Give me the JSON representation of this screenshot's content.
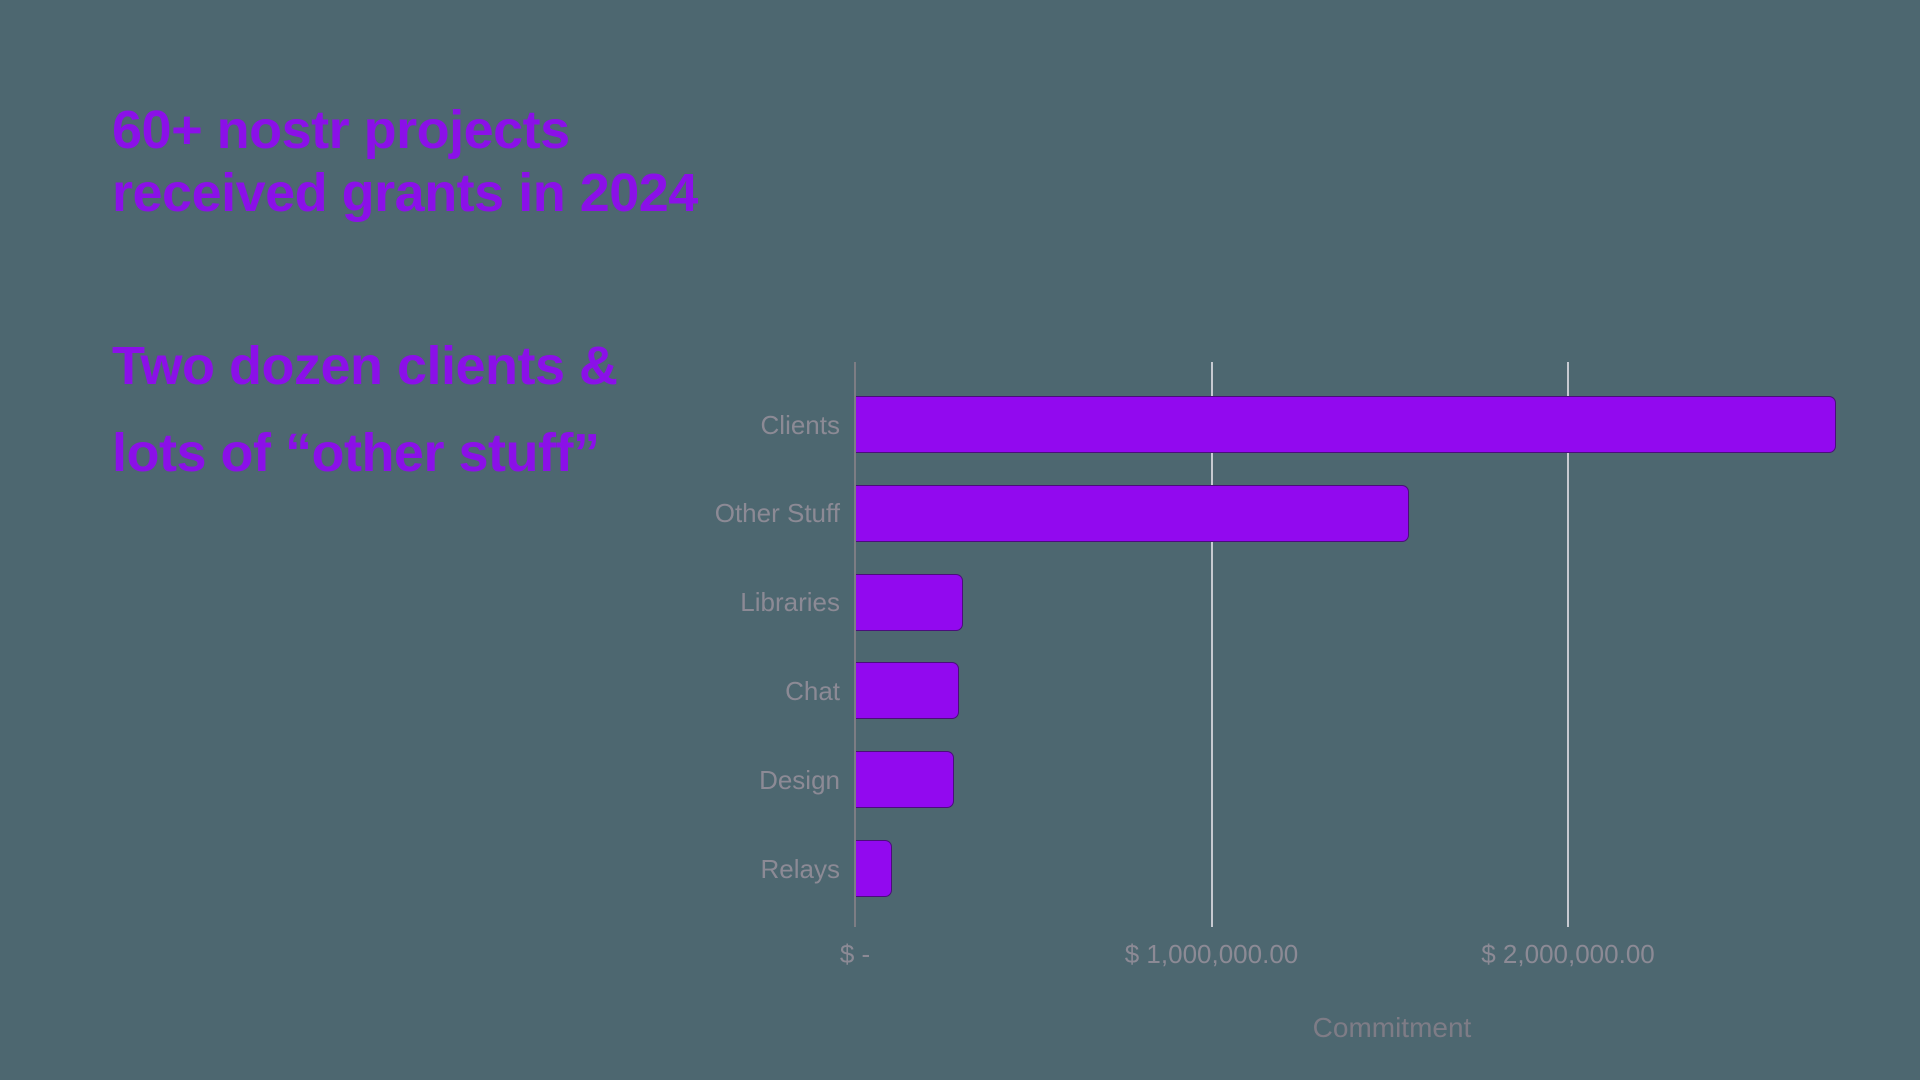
{
  "background_color": "#4D6770",
  "headline": {
    "line1": "60+ nostr projects",
    "line2": "received grants in 2024",
    "color": "#8B10E8"
  },
  "subheadline": {
    "line1": "Two dozen clients &",
    "line2": "lots of “other stuff”",
    "color": "#8B10E8"
  },
  "chart_data": {
    "type": "bar",
    "orientation": "horizontal",
    "title": "",
    "categories": [
      "Clients",
      "Other Stuff",
      "Libraries",
      "Chat",
      "Design",
      "Relays"
    ],
    "values": [
      2750000,
      1550000,
      300000,
      290000,
      275000,
      100000
    ],
    "xlabel": "Commitment",
    "ylabel": "",
    "xlim": [
      0,
      3000000
    ],
    "x_ticks": [
      {
        "value": 0,
        "label": "$ -"
      },
      {
        "value": 1000000,
        "label": "$ 1,000,000.00"
      },
      {
        "value": 2000000,
        "label": "$ 2,000,000.00"
      }
    ],
    "gridlines": true,
    "legend": "none",
    "bar_color": "#9209EF",
    "grid_color": "#C7CAD1",
    "axis_color": "#7D7D84",
    "label_color": "#8C8A95",
    "axis_title_color": "#7E7C86"
  }
}
